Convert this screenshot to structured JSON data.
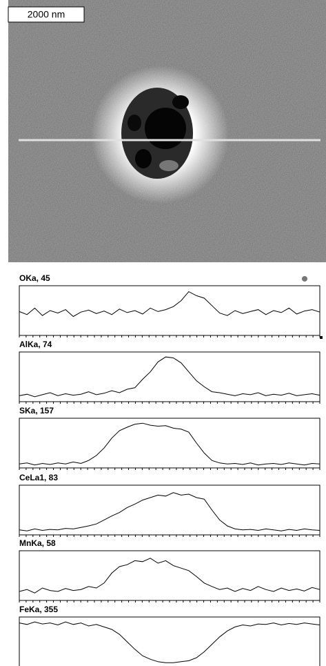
{
  "scale_label": "2000 nm",
  "chart_data": [
    {
      "type": "line",
      "title": "OKa, 45",
      "ylim": [
        0,
        100
      ],
      "values": [
        48,
        42,
        55,
        40,
        50,
        45,
        52,
        38,
        47,
        51,
        44,
        49,
        42,
        53,
        46,
        50,
        43,
        55,
        48,
        52,
        58,
        70,
        88,
        80,
        75,
        60,
        45,
        40,
        50,
        44,
        48,
        52,
        42,
        50,
        46,
        55,
        43,
        49,
        52,
        47
      ]
    },
    {
      "type": "line",
      "title": "AlKa, 74",
      "ylim": [
        0,
        100
      ],
      "values": [
        12,
        15,
        10,
        14,
        18,
        12,
        16,
        13,
        15,
        20,
        14,
        17,
        22,
        18,
        25,
        28,
        45,
        60,
        80,
        90,
        88,
        78,
        60,
        42,
        30,
        20,
        18,
        15,
        12,
        16,
        14,
        18,
        12,
        15,
        13,
        17,
        12,
        14,
        16,
        13
      ]
    },
    {
      "type": "line",
      "title": "SKa, 157",
      "ylim": [
        0,
        100
      ],
      "values": [
        8,
        10,
        6,
        9,
        7,
        10,
        8,
        12,
        9,
        15,
        25,
        40,
        60,
        75,
        82,
        88,
        90,
        86,
        84,
        85,
        80,
        78,
        72,
        50,
        30,
        15,
        10,
        8,
        9,
        7,
        10,
        6,
        8,
        9,
        7,
        10,
        8,
        6,
        9,
        8
      ]
    },
    {
      "type": "line",
      "title": "CeLa1, 83",
      "ylim": [
        0,
        100
      ],
      "values": [
        10,
        8,
        12,
        9,
        11,
        10,
        13,
        12,
        15,
        18,
        22,
        30,
        38,
        45,
        55,
        62,
        70,
        75,
        80,
        78,
        85,
        80,
        82,
        75,
        72,
        50,
        30,
        18,
        12,
        10,
        11,
        9,
        12,
        10,
        8,
        11,
        9,
        12,
        10,
        9
      ]
    },
    {
      "type": "line",
      "title": "MnKa, 58",
      "ylim": [
        0,
        100
      ],
      "values": [
        18,
        22,
        15,
        25,
        20,
        18,
        24,
        20,
        22,
        28,
        25,
        35,
        55,
        68,
        72,
        80,
        78,
        85,
        75,
        80,
        70,
        65,
        60,
        48,
        35,
        28,
        22,
        25,
        18,
        24,
        20,
        28,
        22,
        18,
        25,
        20,
        23,
        19,
        26,
        22
      ]
    },
    {
      "type": "line",
      "title": "FeKa, 355",
      "ylim": [
        0,
        100
      ],
      "values": [
        88,
        85,
        90,
        86,
        88,
        84,
        90,
        85,
        88,
        82,
        85,
        80,
        75,
        65,
        50,
        35,
        22,
        15,
        10,
        8,
        8,
        10,
        12,
        18,
        30,
        45,
        60,
        72,
        80,
        84,
        82,
        86,
        85,
        88,
        84,
        87,
        85,
        88,
        86,
        84
      ]
    }
  ]
}
